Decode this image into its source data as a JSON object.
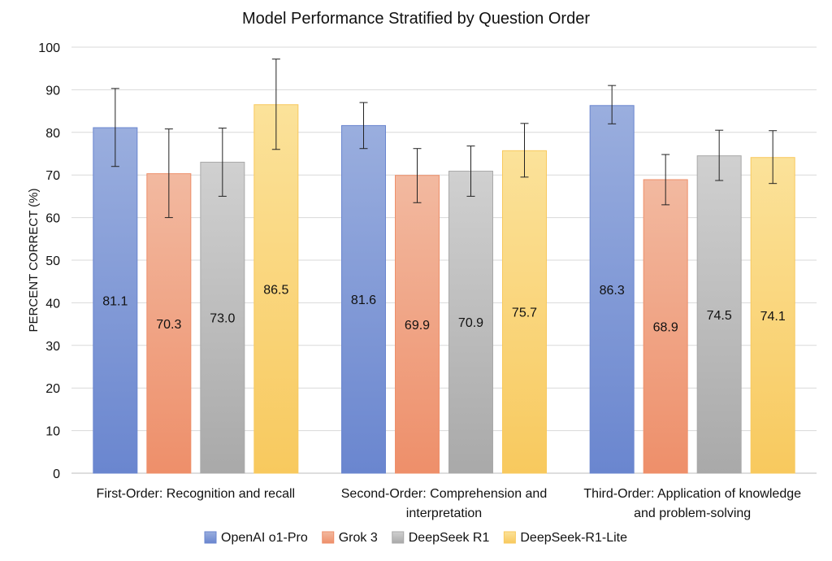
{
  "chart_data": {
    "type": "bar",
    "title": "Model Performance Stratified by Question Order",
    "ylabel": "PERCENT CORRECT (%)",
    "xlabel": "",
    "ylim": [
      0,
      100
    ],
    "yticks": [
      0,
      10,
      20,
      30,
      40,
      50,
      60,
      70,
      80,
      90,
      100
    ],
    "grid": true,
    "legend_position": "bottom",
    "categories": [
      [
        "First-Order: Recognition and recall"
      ],
      [
        "Second-Order: Comprehension and",
        "interpretation"
      ],
      [
        "Third-Order: Application of knowledge",
        "and problem-solving"
      ]
    ],
    "series": [
      {
        "name": "OpenAI o1-Pro",
        "color_top": "#9aaede",
        "color_bottom": "#6a86cf",
        "values": [
          81.1,
          81.6,
          86.3
        ],
        "error_low": [
          72.0,
          76.2,
          82.0
        ],
        "error_high": [
          90.3,
          87.0,
          91.0
        ]
      },
      {
        "name": "Grok 3",
        "color_top": "#f2b9a0",
        "color_bottom": "#ee8f6a",
        "values": [
          70.3,
          69.9,
          68.9
        ],
        "error_low": [
          60.0,
          63.5,
          63.0
        ],
        "error_high": [
          80.8,
          76.2,
          74.8
        ]
      },
      {
        "name": "DeepSeek R1",
        "color_top": "#d0d0d0",
        "color_bottom": "#a9a9a9",
        "values": [
          73.0,
          70.9,
          74.5
        ],
        "error_low": [
          65.0,
          65.0,
          68.7
        ],
        "error_high": [
          81.0,
          76.8,
          80.5
        ]
      },
      {
        "name": "DeepSeek-R1-Lite",
        "color_top": "#fbe29a",
        "color_bottom": "#f8c95e",
        "values": [
          86.5,
          75.7,
          74.1
        ],
        "error_low": [
          76.0,
          69.5,
          68.0
        ],
        "error_high": [
          97.2,
          82.1,
          80.4
        ]
      }
    ]
  }
}
